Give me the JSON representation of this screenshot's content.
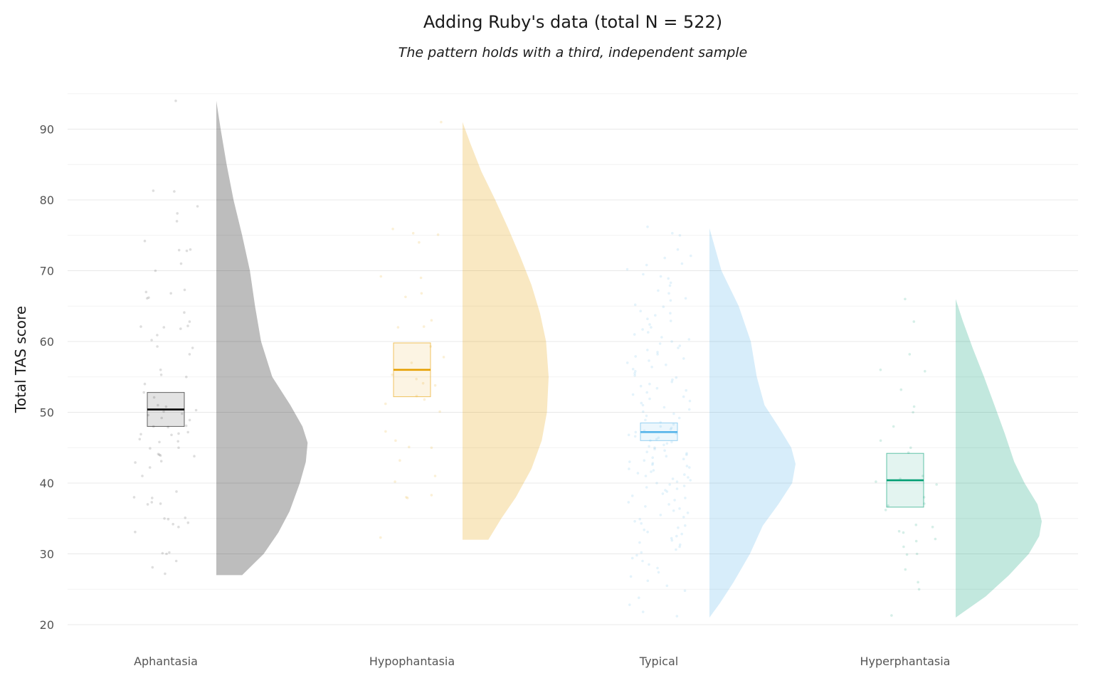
{
  "chart_data": {
    "type": "raincloud",
    "title": "Adding Ruby's data (total N = 522)",
    "subtitle": "The pattern holds with a third, independent sample",
    "xlabel": "",
    "ylabel": "Total TAS score",
    "ylim": [
      17,
      95
    ],
    "yticks": [
      20,
      30,
      40,
      50,
      60,
      70,
      80,
      90
    ],
    "categories": [
      "Aphantasia",
      "Hypophantasia",
      "Typical",
      "Hyperphantasia"
    ],
    "grid": true,
    "groups": [
      {
        "name": "Aphantasia",
        "color": "#000000",
        "box": {
          "q1": 48,
          "median": 50.4,
          "q3": 52.8
        },
        "density": {
          "y": [
            27,
            30,
            33,
            36,
            40,
            43,
            45.7,
            48,
            51,
            55,
            60,
            65,
            70,
            75,
            80,
            85,
            90,
            94
          ],
          "d": [
            0.3,
            0.55,
            0.72,
            0.85,
            0.97,
            1.04,
            1.06,
            1.0,
            0.86,
            0.65,
            0.52,
            0.45,
            0.39,
            0.3,
            0.2,
            0.12,
            0.05,
            0.0
          ]
        },
        "points": [
          94,
          81.3,
          81.2,
          79.1,
          78.1,
          77,
          74.2,
          73,
          72.9,
          72.8,
          71,
          70,
          67.3,
          67,
          66.8,
          66.2,
          66.1,
          64.1,
          62.8,
          62.2,
          62.1,
          62,
          61.8,
          60.9,
          60.2,
          59.3,
          59.1,
          58.2,
          56,
          55.3,
          55,
          54,
          52.8,
          52.1,
          51,
          50.8,
          50.3,
          50.1,
          49.8,
          49.6,
          49.2,
          48.9,
          48.1,
          48,
          47.9,
          47.2,
          47,
          46.9,
          46.8,
          46.2,
          45.9,
          45.8,
          45,
          44.9,
          44.1,
          44,
          43.9,
          43.8,
          43.1,
          42.9,
          42.2,
          41,
          38.8,
          38,
          37.9,
          37.3,
          37.1,
          37,
          35.1,
          35,
          34.9,
          34.4,
          34.2,
          33.8,
          33.1,
          30.2,
          30.1,
          30,
          29,
          28.1,
          27.2
        ]
      },
      {
        "name": "Hypophantasia",
        "color": "#E69F00",
        "box": {
          "q1": 52.2,
          "median": 56,
          "q3": 59.8
        },
        "density": {
          "y": [
            32,
            35,
            38,
            42,
            46,
            50,
            55,
            60,
            64,
            68,
            72,
            76,
            80,
            84,
            88,
            91
          ],
          "d": [
            0.3,
            0.45,
            0.62,
            0.8,
            0.92,
            0.98,
            1.0,
            0.97,
            0.9,
            0.8,
            0.67,
            0.53,
            0.38,
            0.22,
            0.09,
            0.0
          ]
        },
        "points": [
          91,
          75.9,
          75.3,
          75.1,
          74,
          69.2,
          69,
          66.8,
          66.3,
          63,
          62.1,
          62,
          59.3,
          57.8,
          57,
          55.3,
          54.7,
          54.1,
          53.8,
          52.3,
          51.8,
          51.2,
          50.1,
          47.3,
          46,
          45.1,
          45,
          43.2,
          41,
          40.2,
          38.3,
          38,
          37.9,
          32.3
        ]
      },
      {
        "name": "Typical",
        "color": "#56B4E9",
        "box": {
          "q1": 46,
          "median": 47.2,
          "q3": 48.5
        },
        "density": {
          "y": [
            21,
            23,
            26,
            30,
            34,
            37,
            40,
            42.7,
            45,
            48,
            51,
            55,
            60,
            65,
            70,
            76
          ],
          "d": [
            0.0,
            0.12,
            0.28,
            0.47,
            0.62,
            0.8,
            0.96,
            1.0,
            0.95,
            0.8,
            0.64,
            0.55,
            0.48,
            0.34,
            0.14,
            0.0
          ]
        },
        "points": [
          76.2,
          75.3,
          75,
          73,
          72.1,
          71.8,
          71,
          70.8,
          70.2,
          69.5,
          69.2,
          68.9,
          68.3,
          67.9,
          67.2,
          66.8,
          66.1,
          65.8,
          65.2,
          64.9,
          64.3,
          64,
          63.7,
          63.2,
          62.9,
          62.4,
          62,
          61.7,
          61.3,
          61,
          60.6,
          60.3,
          60,
          59.7,
          59.4,
          59.1,
          58.8,
          58.5,
          58.2,
          57.9,
          57.6,
          57.3,
          57,
          56.7,
          56.4,
          56.1,
          55.8,
          55.5,
          55.2,
          54.9,
          54.6,
          54.3,
          54,
          53.7,
          53.4,
          53.1,
          52.8,
          52.5,
          52.2,
          51.9,
          51.6,
          51.3,
          51,
          50.7,
          50.4,
          50.1,
          49.8,
          49.5,
          49.2,
          48.9,
          48.6,
          48.3,
          48,
          47.8,
          47.6,
          47.4,
          47.2,
          47,
          46.8,
          46.6,
          46.4,
          46.2,
          46,
          45.8,
          45.6,
          45.4,
          45.2,
          45,
          44.8,
          44.6,
          44.4,
          44.2,
          44,
          43.8,
          43.6,
          43.4,
          43.2,
          43,
          42.8,
          42.6,
          42.4,
          42.2,
          42,
          41.8,
          41.6,
          41.4,
          41.2,
          41,
          40.8,
          40.6,
          40.4,
          40.2,
          40,
          39.8,
          39.6,
          39.4,
          39.2,
          39,
          38.8,
          38.5,
          38.2,
          37.9,
          37.6,
          37.3,
          37,
          36.7,
          36.4,
          36.1,
          35.8,
          35.5,
          35.2,
          34.9,
          34.6,
          34.3,
          34,
          33.7,
          33.4,
          33.1,
          32.8,
          32.5,
          32.2,
          31.9,
          31.6,
          31.3,
          31,
          30.6,
          30.2,
          29.8,
          29.4,
          29,
          28.5,
          28,
          27.4,
          26.8,
          26.2,
          25.5,
          24.8,
          23.8,
          22.8,
          21.8,
          21.2
        ]
      },
      {
        "name": "Hyperphantasia",
        "color": "#009E73",
        "box": {
          "q1": 36.6,
          "median": 40.4,
          "q3": 44.2
        },
        "density": {
          "y": [
            21,
            24,
            27,
            30,
            32.5,
            34.6,
            37,
            40,
            43,
            47,
            51,
            55,
            59,
            63,
            66
          ],
          "d": [
            0.0,
            0.35,
            0.62,
            0.85,
            0.97,
            1.0,
            0.95,
            0.8,
            0.68,
            0.57,
            0.45,
            0.33,
            0.2,
            0.08,
            0.0
          ]
        },
        "points": [
          66,
          62.8,
          58.2,
          56,
          55.8,
          53.2,
          50.8,
          50,
          48,
          46,
          45,
          44.3,
          41,
          40.6,
          40.2,
          39.8,
          38,
          37.1,
          36.8,
          36.2,
          34.1,
          33.8,
          33.2,
          33,
          32.1,
          31.8,
          31,
          30,
          29.9,
          27.8,
          26,
          25,
          21.3
        ]
      }
    ]
  }
}
